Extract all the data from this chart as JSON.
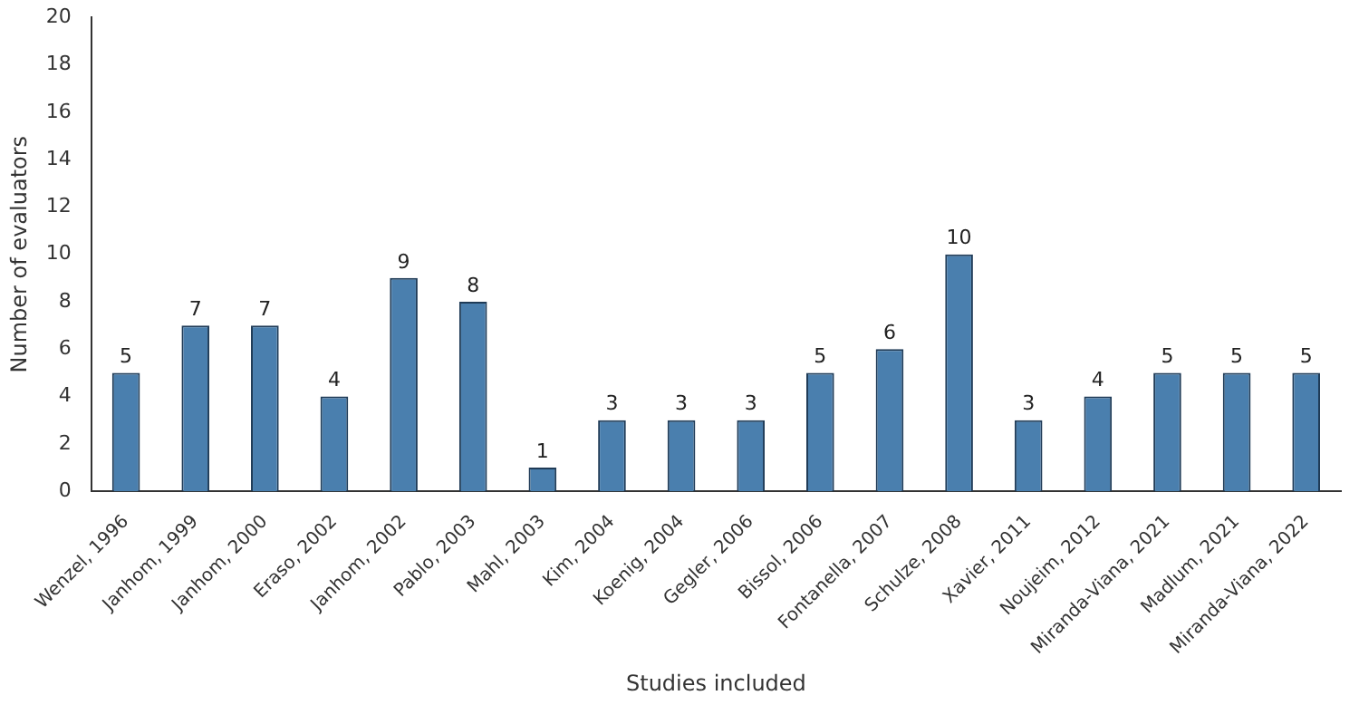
{
  "chart_data": {
    "type": "bar",
    "xlabel": "Studies included",
    "ylabel": "Number of evaluators",
    "categories": [
      "Wenzel, 1996",
      "Janhom, 1999",
      "Janhom, 2000",
      "Eraso, 2002",
      "Janhom, 2002",
      "Pablo, 2003",
      "Mahl, 2003",
      "Kim, 2004",
      "Koenig, 2004",
      "Gegler, 2006",
      "Bissol, 2006",
      "Fontanella, 2007",
      "Schulze, 2008",
      "Xavier, 2011",
      "Noujeim, 2012",
      "Miranda-Viana, 2021",
      "Madlum, 2021",
      "Miranda-Viana, 2022"
    ],
    "values": [
      5,
      7,
      7,
      4,
      9,
      8,
      1,
      3,
      3,
      3,
      5,
      6,
      10,
      3,
      4,
      5,
      5,
      5
    ],
    "color": "#4a7fae",
    "ylim": [
      0,
      20
    ],
    "yticks": [
      0,
      2,
      4,
      6,
      8,
      10,
      12,
      14,
      16,
      18,
      20
    ],
    "grid": false,
    "legend": false,
    "data_labels": true
  }
}
